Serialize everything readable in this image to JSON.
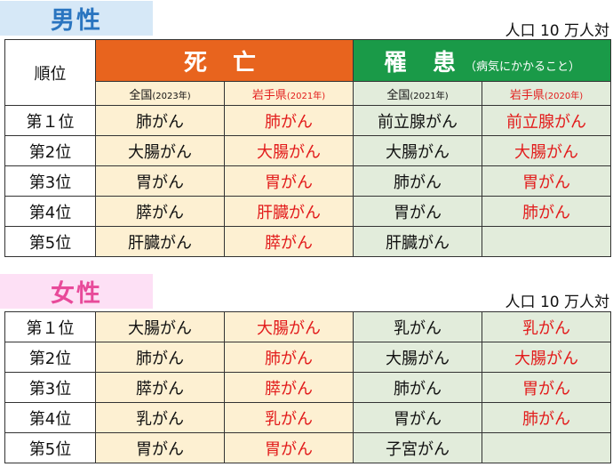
{
  "male": {
    "title": "男性",
    "unit": "人口 10 万人対",
    "rank_header": "順位",
    "death_header": "死 亡",
    "incidence_header": "罹 患",
    "incidence_note": "（病気にかかること）",
    "subheaders": [
      {
        "label": "全国",
        "year": "(2023年)"
      },
      {
        "label": "岩手県",
        "year": "(2021年)"
      },
      {
        "label": "全国",
        "year": "(2021年)"
      },
      {
        "label": "岩手県",
        "year": "(2020年)"
      }
    ],
    "rows": [
      [
        "第１位",
        "肺がん",
        "肺がん",
        "前立腺がん",
        "前立腺がん"
      ],
      [
        "第2位",
        "大腸がん",
        "大腸がん",
        "大腸がん",
        "大腸がん"
      ],
      [
        "第3位",
        "胃がん",
        "胃がん",
        "肺がん",
        "胃がん"
      ],
      [
        "第4位",
        "膵がん",
        "肝臓がん",
        "胃がん",
        "肺がん"
      ],
      [
        "第5位",
        "肝臓がん",
        "膵がん",
        "肝臓がん",
        ""
      ]
    ]
  },
  "female": {
    "title": "女性",
    "unit": "人口 10 万人対",
    "rows": [
      [
        "第１位",
        "大腸がん",
        "大腸がん",
        "乳がん",
        "乳がん"
      ],
      [
        "第2位",
        "肺がん",
        "肺がん",
        "大腸がん",
        "大腸がん"
      ],
      [
        "第3位",
        "膵がん",
        "膵がん",
        "肺がん",
        "胃がん"
      ],
      [
        "第4位",
        "乳がん",
        "乳がん",
        "胃がん",
        "肺がん"
      ],
      [
        "第5位",
        "胃がん",
        "胃がん",
        "子宮がん",
        ""
      ]
    ]
  },
  "colors": {
    "death": "#e8641e",
    "incidence": "#1a9a48",
    "iwate_text": "#e21b1b",
    "male_title": "#2a75c0",
    "female_title": "#e84a9a"
  }
}
